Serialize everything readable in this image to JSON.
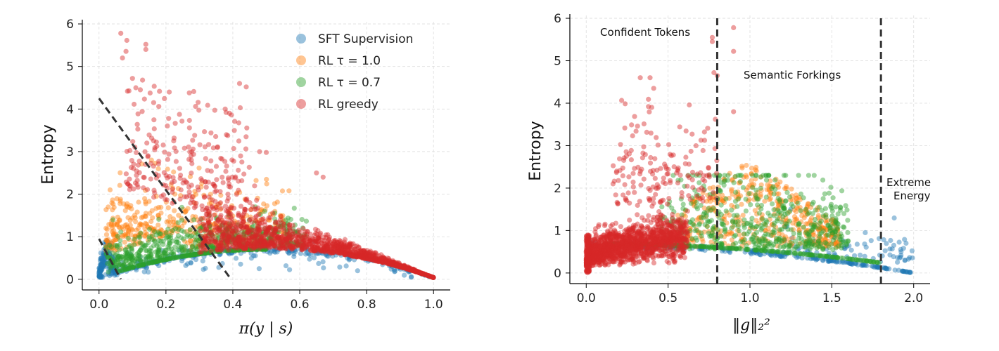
{
  "colors": {
    "sft": "#1f77b4",
    "rl10": "#ff7f0e",
    "rl07": "#2ca02c",
    "greedy": "#d62728",
    "dashed": "#333333",
    "grid": "#dddddd"
  },
  "chart_data": [
    {
      "type": "scatter",
      "xlabel": "π(y | s)",
      "ylabel": "Entropy",
      "xlim": [
        -0.05,
        1.05
      ],
      "ylim": [
        -0.25,
        6.1
      ],
      "xticks": [
        0.0,
        0.2,
        0.4,
        0.6,
        0.8,
        1.0
      ],
      "xtick_labels": [
        "0.0",
        "0.2",
        "0.4",
        "0.6",
        "0.8",
        "1.0"
      ],
      "yticks": [
        0,
        1,
        2,
        3,
        4,
        5,
        6
      ],
      "ytick_labels": [
        "0",
        "1",
        "2",
        "3",
        "4",
        "5",
        "6"
      ],
      "grid": true,
      "legend_position": "top-right",
      "series": [
        {
          "name": "SFT Supervision",
          "key": "sft"
        },
        {
          "name": "RL τ = 1.0",
          "key": "rl10"
        },
        {
          "name": "RL τ = 0.7",
          "key": "rl07"
        },
        {
          "name": "RL greedy",
          "key": "greedy"
        }
      ],
      "reference_lines": [
        {
          "x": [
            0.0,
            0.39
          ],
          "y": [
            4.25,
            0.05
          ],
          "style": "dashed"
        },
        {
          "x": [
            0.0,
            0.065
          ],
          "y": [
            0.95,
            0.0
          ],
          "style": "dashed"
        }
      ]
    },
    {
      "type": "scatter",
      "xlabel": "‖g‖₂²",
      "ylabel": "Entropy",
      "xlim": [
        -0.1,
        2.1
      ],
      "ylim": [
        -0.25,
        6.1
      ],
      "xticks": [
        0.0,
        0.5,
        1.0,
        1.5,
        2.0
      ],
      "xtick_labels": [
        "0.0",
        "0.5",
        "1.0",
        "1.5",
        "2.0"
      ],
      "yticks": [
        0,
        1,
        2,
        3,
        4,
        5,
        6
      ],
      "ytick_labels": [
        "0",
        "1",
        "2",
        "3",
        "4",
        "5",
        "6"
      ],
      "grid": true,
      "vertical_lines": [
        0.8,
        1.8
      ],
      "annotations": [
        "Confident Tokens",
        "Semantic Forkings",
        "Extreme",
        "Energy"
      ]
    }
  ]
}
